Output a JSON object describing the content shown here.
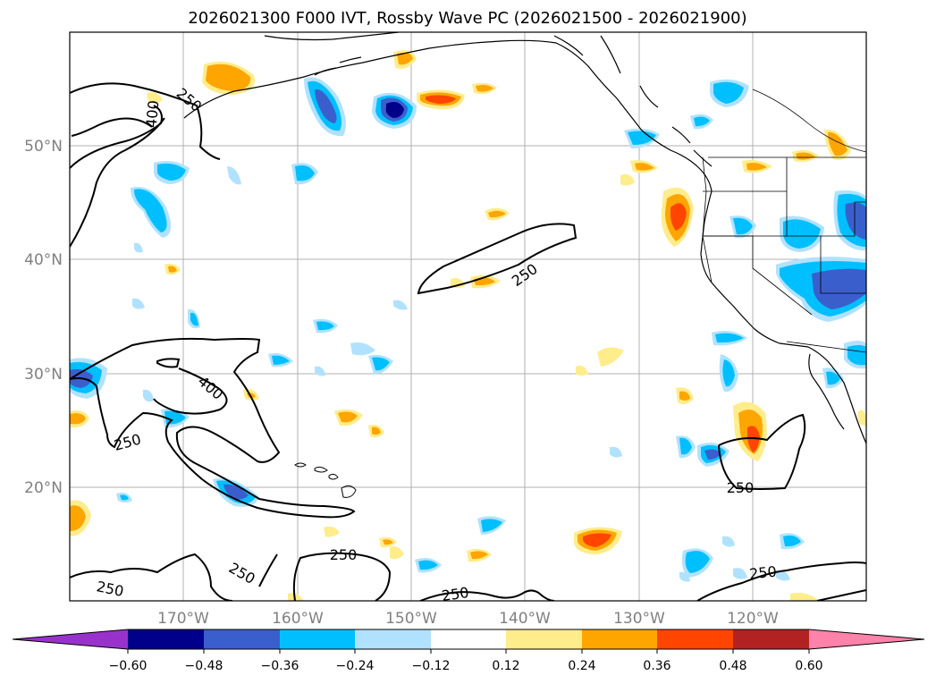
{
  "title": "2026021300 F000 IVT, Rossby Wave PC (2026021500 - 2026021900)",
  "map": {
    "lon_labels": [
      "170°W",
      "160°W",
      "150°W",
      "140°W",
      "130°W",
      "120°W"
    ],
    "lat_labels": [
      "50°N",
      "40°N",
      "30°N",
      "20°N"
    ],
    "ivt_contour_levels": [
      "250",
      "400"
    ]
  },
  "colorbar": {
    "ticks": [
      "−0.60",
      "−0.48",
      "−0.36",
      "−0.24",
      "−0.12",
      "0.12",
      "0.24",
      "0.36",
      "0.48",
      "0.60"
    ],
    "colors": [
      "#9932cc",
      "#00008b",
      "#3a5fcd",
      "#00bfff",
      "#b0e2ff",
      "#ffffff",
      "#ffec8b",
      "#ffa500",
      "#ff4500",
      "#b22222",
      "#ff82ab"
    ]
  },
  "colors": {
    "neg_strong": "#00008b",
    "neg_mid": "#3a5fcd",
    "neg": "#00bfff",
    "neg_weak": "#b0e2ff",
    "pos_weak": "#ffec8b",
    "pos": "#ffa500",
    "pos_mid": "#ff4500"
  }
}
